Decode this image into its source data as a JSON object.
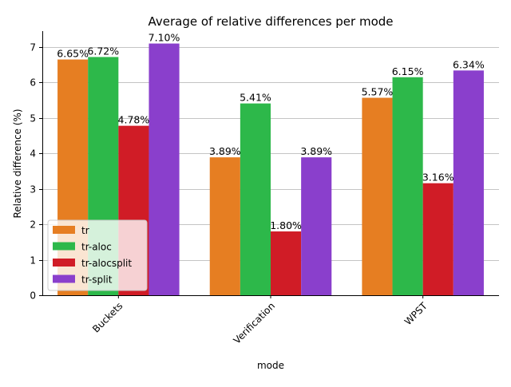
{
  "chart_data": {
    "type": "bar",
    "title": "Average of relative differences per mode",
    "xlabel": "mode",
    "ylabel": "Relative difference (%)",
    "ylim": [
      0,
      7.45
    ],
    "yticks": [
      0,
      1,
      2,
      3,
      4,
      5,
      6,
      7
    ],
    "grid": "horizontal",
    "legend_position": "lower-left",
    "categories": [
      "Buckets",
      "Verification",
      "WPST"
    ],
    "series": [
      {
        "name": "tr",
        "color": "#e67e22",
        "values": [
          6.65,
          3.89,
          5.57
        ],
        "labels": [
          "6.65%",
          "3.89%",
          "5.57%"
        ]
      },
      {
        "name": "tr-aloc",
        "color": "#2db84a",
        "values": [
          6.72,
          5.41,
          6.15
        ],
        "labels": [
          "6.72%",
          "5.41%",
          "6.15%"
        ]
      },
      {
        "name": "tr-alocsplit",
        "color": "#d01c26",
        "values": [
          4.78,
          1.8,
          3.16
        ],
        "labels": [
          "4.78%",
          "1.80%",
          "3.16%"
        ]
      },
      {
        "name": "tr-split",
        "color": "#8a3fcc",
        "values": [
          7.1,
          3.89,
          6.34
        ],
        "labels": [
          "7.10%",
          "3.89%",
          "6.34%"
        ]
      }
    ]
  }
}
